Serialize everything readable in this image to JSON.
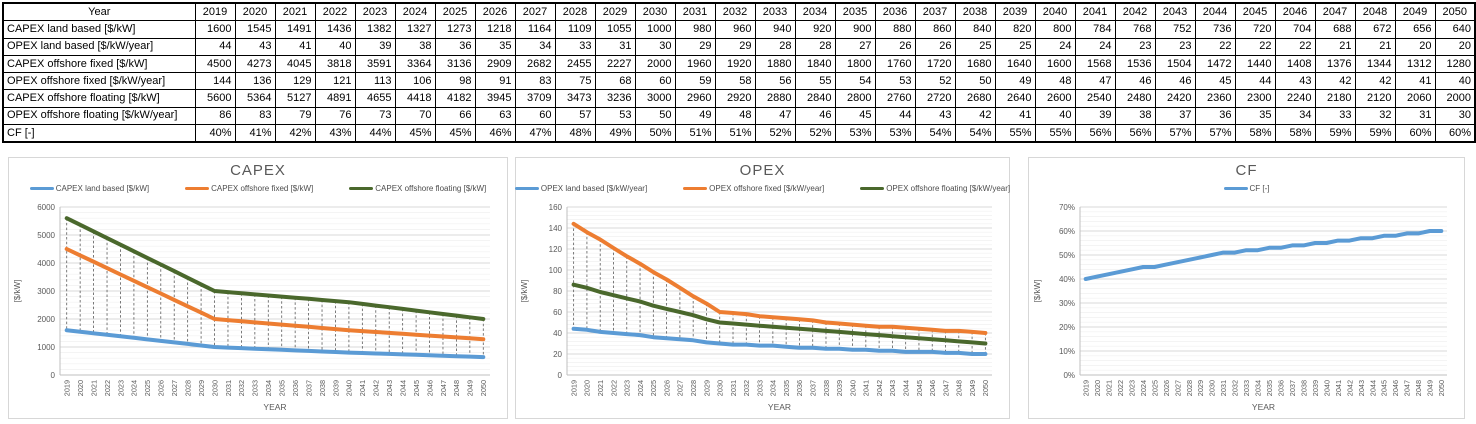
{
  "table": {
    "header": [
      "Year",
      "2019",
      "2020",
      "2021",
      "2022",
      "2023",
      "2024",
      "2025",
      "2026",
      "2027",
      "2028",
      "2029",
      "2030",
      "2031",
      "2032",
      "2033",
      "2034",
      "2035",
      "2036",
      "2037",
      "2038",
      "2039",
      "2040",
      "2041",
      "2042",
      "2043",
      "2044",
      "2045",
      "2046",
      "2047",
      "2048",
      "2049",
      "2050"
    ],
    "rows": [
      {
        "label": "CAPEX land based [$/kW]",
        "values": [
          1600,
          1545,
          1491,
          1436,
          1382,
          1327,
          1273,
          1218,
          1164,
          1109,
          1055,
          1000,
          980,
          960,
          940,
          920,
          900,
          880,
          860,
          840,
          820,
          800,
          784,
          768,
          752,
          736,
          720,
          704,
          688,
          672,
          656,
          640
        ]
      },
      {
        "label": "OPEX land based [$/kW/year]",
        "values": [
          44,
          43,
          41,
          40,
          39,
          38,
          36,
          35,
          34,
          33,
          31,
          30,
          29,
          29,
          28,
          28,
          27,
          26,
          26,
          25,
          25,
          24,
          24,
          23,
          23,
          22,
          22,
          22,
          21,
          21,
          20,
          20
        ]
      },
      {
        "label": "CAPEX offshore fixed [$/kW]",
        "values": [
          4500,
          4273,
          4045,
          3818,
          3591,
          3364,
          3136,
          2909,
          2682,
          2455,
          2227,
          2000,
          1960,
          1920,
          1880,
          1840,
          1800,
          1760,
          1720,
          1680,
          1640,
          1600,
          1568,
          1536,
          1504,
          1472,
          1440,
          1408,
          1376,
          1344,
          1312,
          1280
        ]
      },
      {
        "label": "OPEX offshore fixed [$/kW/year]",
        "values": [
          144,
          136,
          129,
          121,
          113,
          106,
          98,
          91,
          83,
          75,
          68,
          60,
          59,
          58,
          56,
          55,
          54,
          53,
          52,
          50,
          49,
          48,
          47,
          46,
          46,
          45,
          44,
          43,
          42,
          42,
          41,
          40
        ]
      },
      {
        "label": "CAPEX offshore floating [$/kW]",
        "values": [
          5600,
          5364,
          5127,
          4891,
          4655,
          4418,
          4182,
          3945,
          3709,
          3473,
          3236,
          3000,
          2960,
          2920,
          2880,
          2840,
          2800,
          2760,
          2720,
          2680,
          2640,
          2600,
          2540,
          2480,
          2420,
          2360,
          2300,
          2240,
          2180,
          2120,
          2060,
          2000
        ]
      },
      {
        "label": "OPEX offshore floating [$/kW/year]",
        "values": [
          86,
          83,
          79,
          76,
          73,
          70,
          66,
          63,
          60,
          57,
          53,
          50,
          49,
          48,
          47,
          46,
          45,
          44,
          43,
          42,
          41,
          40,
          39,
          38,
          37,
          36,
          35,
          34,
          33,
          32,
          31,
          30
        ]
      },
      {
        "label": "CF [-]",
        "values": [
          "40%",
          "41%",
          "42%",
          "43%",
          "44%",
          "45%",
          "45%",
          "46%",
          "47%",
          "48%",
          "49%",
          "50%",
          "51%",
          "51%",
          "52%",
          "52%",
          "53%",
          "53%",
          "54%",
          "54%",
          "55%",
          "55%",
          "56%",
          "56%",
          "57%",
          "57%",
          "58%",
          "58%",
          "59%",
          "59%",
          "60%",
          "60%"
        ]
      }
    ]
  },
  "chart_data": [
    {
      "type": "line",
      "title": "CAPEX",
      "xlabel": "YEAR",
      "ylabel": "[$/kW]",
      "ylim": [
        0,
        6000
      ],
      "ytick_step": 1000,
      "yminor_step": 200,
      "tick_format": "plain",
      "grid": true,
      "legend_position": "top",
      "high_low_lines": true,
      "categories": [
        "2019",
        "2020",
        "2021",
        "2022",
        "2023",
        "2024",
        "2025",
        "2026",
        "2027",
        "2028",
        "2029",
        "2030",
        "2031",
        "2032",
        "2033",
        "2034",
        "2035",
        "2036",
        "2037",
        "2038",
        "2039",
        "2040",
        "2041",
        "2042",
        "2043",
        "2044",
        "2045",
        "2046",
        "2047",
        "2048",
        "2049",
        "2050"
      ],
      "series": [
        {
          "name": "CAPEX land based [$/kW]",
          "color": "#5B9BD5",
          "values": [
            1600,
            1545,
            1491,
            1436,
            1382,
            1327,
            1273,
            1218,
            1164,
            1109,
            1055,
            1000,
            980,
            960,
            940,
            920,
            900,
            880,
            860,
            840,
            820,
            800,
            784,
            768,
            752,
            736,
            720,
            704,
            688,
            672,
            656,
            640
          ]
        },
        {
          "name": "CAPEX offshore fixed [$/kW]",
          "color": "#ED7D31",
          "values": [
            4500,
            4273,
            4045,
            3818,
            3591,
            3364,
            3136,
            2909,
            2682,
            2455,
            2227,
            2000,
            1960,
            1920,
            1880,
            1840,
            1800,
            1760,
            1720,
            1680,
            1640,
            1600,
            1568,
            1536,
            1504,
            1472,
            1440,
            1408,
            1376,
            1344,
            1312,
            1280
          ]
        },
        {
          "name": "CAPEX offshore floating [$/kW]",
          "color": "#4A682C",
          "values": [
            5600,
            5364,
            5127,
            4891,
            4655,
            4418,
            4182,
            3945,
            3709,
            3473,
            3236,
            3000,
            2960,
            2920,
            2880,
            2840,
            2800,
            2760,
            2720,
            2680,
            2640,
            2600,
            2540,
            2480,
            2420,
            2360,
            2300,
            2240,
            2180,
            2120,
            2060,
            2000
          ]
        }
      ]
    },
    {
      "type": "line",
      "title": "OPEX",
      "xlabel": "YEAR",
      "ylabel": "[$/kW]",
      "ylim": [
        0,
        160
      ],
      "ytick_step": 20,
      "yminor_step": 4,
      "tick_format": "plain",
      "grid": true,
      "legend_position": "top",
      "high_low_lines": true,
      "categories": [
        "2019",
        "2020",
        "2021",
        "2022",
        "2023",
        "2024",
        "2025",
        "2026",
        "2027",
        "2028",
        "2029",
        "2030",
        "2031",
        "2032",
        "2033",
        "2034",
        "2035",
        "2036",
        "2037",
        "2038",
        "2039",
        "2040",
        "2041",
        "2042",
        "2043",
        "2044",
        "2045",
        "2046",
        "2047",
        "2048",
        "2049",
        "2050"
      ],
      "series": [
        {
          "name": "OPEX land based [$/kW/year]",
          "color": "#5B9BD5",
          "values": [
            44,
            43,
            41,
            40,
            39,
            38,
            36,
            35,
            34,
            33,
            31,
            30,
            29,
            29,
            28,
            28,
            27,
            26,
            26,
            25,
            25,
            24,
            24,
            23,
            23,
            22,
            22,
            22,
            21,
            21,
            20,
            20
          ]
        },
        {
          "name": "OPEX offshore fixed [$/kW/year]",
          "color": "#ED7D31",
          "values": [
            144,
            136,
            129,
            121,
            113,
            106,
            98,
            91,
            83,
            75,
            68,
            60,
            59,
            58,
            56,
            55,
            54,
            53,
            52,
            50,
            49,
            48,
            47,
            46,
            46,
            45,
            44,
            43,
            42,
            42,
            41,
            40
          ]
        },
        {
          "name": "OPEX offshore floating [$/kW/year]",
          "color": "#4A682C",
          "values": [
            86,
            83,
            79,
            76,
            73,
            70,
            66,
            63,
            60,
            57,
            53,
            50,
            49,
            48,
            47,
            46,
            45,
            44,
            43,
            42,
            41,
            40,
            39,
            38,
            37,
            36,
            35,
            34,
            33,
            32,
            31,
            30
          ]
        }
      ]
    },
    {
      "type": "line",
      "title": "CF",
      "xlabel": "YEAR",
      "ylabel": "[$/kW]",
      "ylim": [
        0,
        70
      ],
      "ytick_step": 10,
      "yminor_step": 2,
      "tick_format": "percent",
      "grid": true,
      "legend_position": "top",
      "high_low_lines": false,
      "categories": [
        "2019",
        "2020",
        "2021",
        "2022",
        "2023",
        "2024",
        "2025",
        "2026",
        "2027",
        "2028",
        "2029",
        "2030",
        "2031",
        "2032",
        "2033",
        "2034",
        "2035",
        "2036",
        "2037",
        "2038",
        "2039",
        "2040",
        "2041",
        "2042",
        "2043",
        "2044",
        "2045",
        "2046",
        "2047",
        "2048",
        "2049",
        "2050"
      ],
      "series": [
        {
          "name": "CF [-]",
          "color": "#5B9BD5",
          "values": [
            40,
            41,
            42,
            43,
            44,
            45,
            45,
            46,
            47,
            48,
            49,
            50,
            51,
            51,
            52,
            52,
            53,
            53,
            54,
            54,
            55,
            55,
            56,
            56,
            57,
            57,
            58,
            58,
            59,
            59,
            60,
            60
          ]
        }
      ]
    }
  ],
  "style": {
    "major_grid_color": "#d9d9d9",
    "minor_grid_color": "#f0f0f0",
    "axis_color": "#bfbfbf",
    "tick_text_color": "#595959",
    "drop_line_color": "#595959"
  }
}
